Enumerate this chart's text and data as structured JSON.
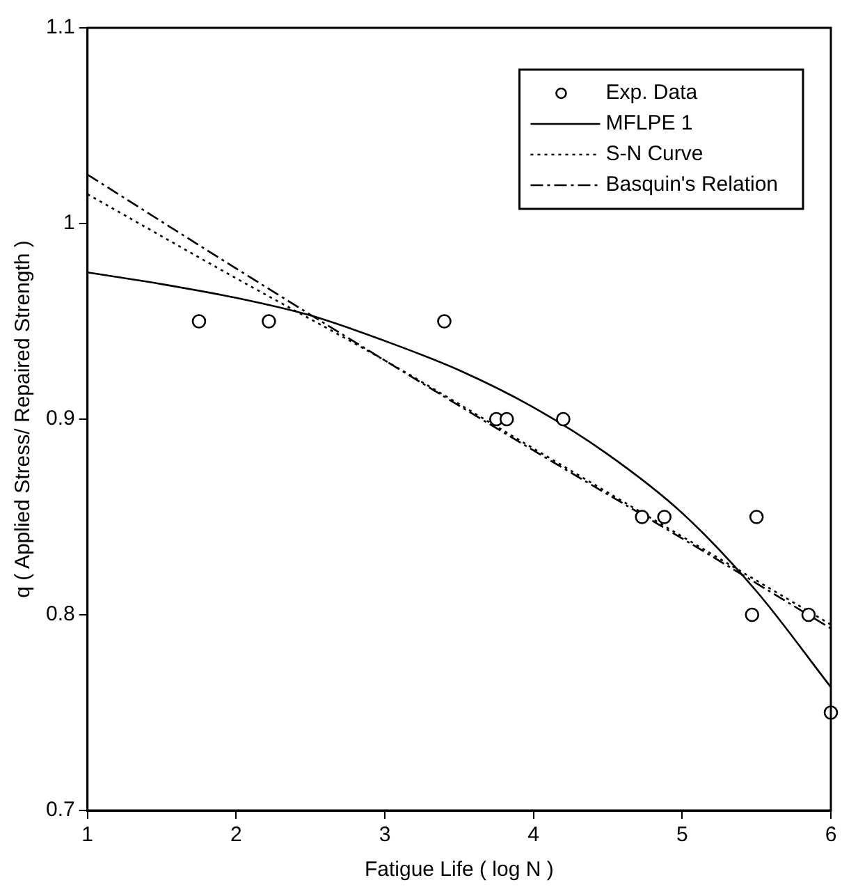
{
  "chart_data": {
    "type": "line",
    "xlabel": "Fatigue Life ( log N )",
    "ylabel": "q ( Applied Stress/ Repaired Strength )",
    "xlim": [
      1,
      6
    ],
    "xticks": [
      1,
      2,
      3,
      4,
      5,
      6
    ],
    "ylim": [
      0.7,
      1.1
    ],
    "yticks": [
      0.7,
      0.8,
      0.9,
      1,
      1.1
    ],
    "grid": false,
    "legend": "top right",
    "series": [
      {
        "name": "Exp. Data",
        "type": "scatter",
        "marker": "circle",
        "color": "#000000",
        "x": [
          1.75,
          2.22,
          3.4,
          3.75,
          3.82,
          4.2,
          4.73,
          4.88,
          5.47,
          5.5,
          5.85,
          6
        ],
        "values": [
          0.95,
          0.95,
          0.95,
          0.9,
          0.9,
          0.9,
          0.85,
          0.85,
          0.8,
          0.85,
          0.8,
          0.75
        ]
      },
      {
        "name": "MFLPE 1",
        "type": "line",
        "line_style": "solid",
        "color": "#000000",
        "x": [
          1,
          1.5,
          2,
          2.5,
          3,
          3.5,
          4,
          4.5,
          5,
          5.5,
          6
        ],
        "values": [
          0.975,
          0.969,
          0.962,
          0.953,
          0.94,
          0.925,
          0.906,
          0.882,
          0.852,
          0.812,
          0.763
        ]
      },
      {
        "name": "S-N Curve",
        "type": "line",
        "line_style": "dotted",
        "color": "#000000",
        "x": [
          1,
          2,
          3,
          4,
          5,
          6
        ],
        "values": [
          1.015,
          0.972,
          0.93,
          0.885,
          0.84,
          0.795
        ]
      },
      {
        "name": "Basquin's Relation",
        "type": "line",
        "line_style": "dashed",
        "color": "#000000",
        "x": [
          1,
          2,
          3,
          4,
          5,
          6
        ],
        "values": [
          1.025,
          0.977,
          0.93,
          0.884,
          0.839,
          0.793
        ]
      }
    ]
  }
}
